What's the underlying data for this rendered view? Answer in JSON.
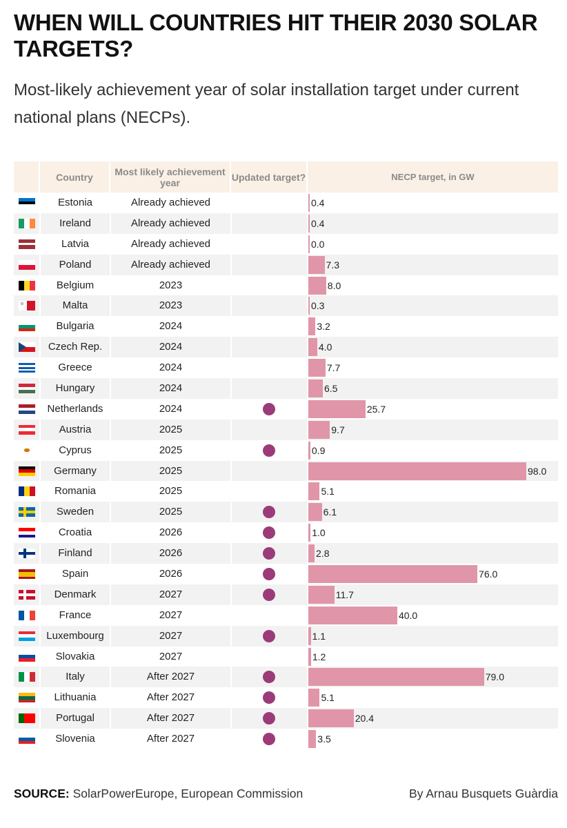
{
  "header": {
    "title": "WHEN WILL COUNTRIES HIT THEIR 2030 SOLAR TARGETS?",
    "subtitle": "Most-likely achievement year of solar installation target under current national plans (NECPs)."
  },
  "columns": {
    "country": "Country",
    "year": "Most likely achievement year",
    "updated": "Updated target?",
    "value": "NECP target, in GW"
  },
  "colors": {
    "bar": "#e096a8",
    "dot": "#9b3b79",
    "header_bg": "#faf0e6",
    "row_alt": "#f2f2f2"
  },
  "footer": {
    "source_label": "SOURCE:",
    "source_text": "SolarPowerEurope, European Commission",
    "credit": "By Arnau Busquets Guàrdia"
  },
  "chart_data": {
    "type": "bar",
    "orientation": "horizontal",
    "title": "WHEN WILL COUNTRIES HIT THEIR 2030 SOLAR TARGETS?",
    "xlabel": "NECP target, in GW",
    "xlim": [
      0,
      98
    ],
    "rows": [
      {
        "country": "Estonia",
        "year": "Already achieved",
        "updated": false,
        "value": 0.4,
        "label": "0.4",
        "flag": [
          [
            "#0072ce",
            "#000000",
            "#ffffff"
          ],
          "h"
        ]
      },
      {
        "country": "Ireland",
        "year": "Already achieved",
        "updated": false,
        "value": 0.4,
        "label": "0.4",
        "flag": [
          [
            "#169b62",
            "#ffffff",
            "#ff883e"
          ],
          "v"
        ]
      },
      {
        "country": "Latvia",
        "year": "Already achieved",
        "updated": false,
        "value": 0.0,
        "label": "0.0",
        "flag": [
          [
            "#9e3039",
            "#9e3039",
            "#ffffff",
            "#9e3039",
            "#9e3039"
          ],
          "h"
        ]
      },
      {
        "country": "Poland",
        "year": "Already achieved",
        "updated": false,
        "value": 7.3,
        "label": "7.3",
        "flag": [
          [
            "#ffffff",
            "#dc143c"
          ],
          "h"
        ]
      },
      {
        "country": "Belgium",
        "year": "2023",
        "updated": false,
        "value": 8.0,
        "label": "8.0",
        "flag": [
          [
            "#000000",
            "#fdda24",
            "#ef3340"
          ],
          "v"
        ]
      },
      {
        "country": "Malta",
        "year": "2023",
        "updated": false,
        "value": 0.3,
        "label": "0.3",
        "flag": [
          [
            "#ffffff",
            "#cf142b"
          ],
          "v"
        ]
      },
      {
        "country": "Bulgaria",
        "year": "2024",
        "updated": false,
        "value": 3.2,
        "label": "3.2",
        "flag": [
          [
            "#ffffff",
            "#00966e",
            "#d62612"
          ],
          "h"
        ]
      },
      {
        "country": "Czech Rep.",
        "year": "2024",
        "updated": false,
        "value": 4.0,
        "label": "4.0",
        "flag": [
          [
            "#ffffff",
            "#d7141a"
          ],
          "h"
        ],
        "triangle": "#11457e"
      },
      {
        "country": "Greece",
        "year": "2024",
        "updated": false,
        "value": 7.7,
        "label": "7.7",
        "flag": [
          [
            "#0d5eaf",
            "#ffffff",
            "#0d5eaf",
            "#ffffff",
            "#0d5eaf"
          ],
          "h"
        ]
      },
      {
        "country": "Hungary",
        "year": "2024",
        "updated": false,
        "value": 6.5,
        "label": "6.5",
        "flag": [
          [
            "#ce2939",
            "#ffffff",
            "#477050"
          ],
          "h"
        ]
      },
      {
        "country": "Netherlands",
        "year": "2024",
        "updated": true,
        "value": 25.7,
        "label": "25.7",
        "flag": [
          [
            "#ae1c28",
            "#ffffff",
            "#21468b"
          ],
          "h"
        ]
      },
      {
        "country": "Austria",
        "year": "2025",
        "updated": false,
        "value": 9.7,
        "label": "9.7",
        "flag": [
          [
            "#ed2939",
            "#ffffff",
            "#ed2939"
          ],
          "h"
        ]
      },
      {
        "country": "Cyprus",
        "year": "2025",
        "updated": true,
        "value": 0.9,
        "label": "0.9",
        "flag": [
          [
            "#ffffff"
          ],
          "h"
        ],
        "emblem": "#d57800"
      },
      {
        "country": "Germany",
        "year": "2025",
        "updated": false,
        "value": 98.0,
        "label": "98.0",
        "flag": [
          [
            "#000000",
            "#dd0000",
            "#ffce00"
          ],
          "h"
        ]
      },
      {
        "country": "Romania",
        "year": "2025",
        "updated": false,
        "value": 5.1,
        "label": "5.1",
        "flag": [
          [
            "#002b7f",
            "#fcd116",
            "#ce1126"
          ],
          "v"
        ]
      },
      {
        "country": "Sweden",
        "year": "2025",
        "updated": true,
        "value": 6.1,
        "label": "6.1",
        "flag": [
          [
            "#006aa7"
          ],
          "h"
        ],
        "cross": "#fecc00"
      },
      {
        "country": "Croatia",
        "year": "2026",
        "updated": true,
        "value": 1.0,
        "label": "1.0",
        "flag": [
          [
            "#ff0000",
            "#ffffff",
            "#171796"
          ],
          "h"
        ]
      },
      {
        "country": "Finland",
        "year": "2026",
        "updated": true,
        "value": 2.8,
        "label": "2.8",
        "flag": [
          [
            "#ffffff"
          ],
          "h"
        ],
        "cross": "#003580"
      },
      {
        "country": "Spain",
        "year": "2026",
        "updated": true,
        "value": 76.0,
        "label": "76.0",
        "flag": [
          [
            "#aa151b",
            "#f1bf00",
            "#f1bf00",
            "#aa151b"
          ],
          "h"
        ]
      },
      {
        "country": "Denmark",
        "year": "2027",
        "updated": true,
        "value": 11.7,
        "label": "11.7",
        "flag": [
          [
            "#c8102e"
          ],
          "h"
        ],
        "cross": "#ffffff"
      },
      {
        "country": "France",
        "year": "2027",
        "updated": false,
        "value": 40.0,
        "label": "40.0",
        "flag": [
          [
            "#0055a4",
            "#ffffff",
            "#ef4135"
          ],
          "v"
        ]
      },
      {
        "country": "Luxembourg",
        "year": "2027",
        "updated": true,
        "value": 1.1,
        "label": "1.1",
        "flag": [
          [
            "#ed2939",
            "#ffffff",
            "#00a1de"
          ],
          "h"
        ]
      },
      {
        "country": "Slovakia",
        "year": "2027",
        "updated": false,
        "value": 1.2,
        "label": "1.2",
        "flag": [
          [
            "#ffffff",
            "#0b4ea2",
            "#ee1c25"
          ],
          "h"
        ]
      },
      {
        "country": "Italy",
        "year": "After 2027",
        "updated": true,
        "value": 79.0,
        "label": "79.0",
        "flag": [
          [
            "#009246",
            "#ffffff",
            "#ce2b37"
          ],
          "v"
        ]
      },
      {
        "country": "Lithuania",
        "year": "After 2027",
        "updated": true,
        "value": 5.1,
        "label": "5.1",
        "flag": [
          [
            "#fdb913",
            "#006a44",
            "#c1272d"
          ],
          "h"
        ]
      },
      {
        "country": "Portugal",
        "year": "After 2027",
        "updated": true,
        "value": 20.4,
        "label": "20.4",
        "flag": [
          [
            "#006600",
            "#ff0000",
            "#ff0000"
          ],
          "v"
        ]
      },
      {
        "country": "Slovenia",
        "year": "After 2027",
        "updated": true,
        "value": 3.5,
        "label": "3.5",
        "flag": [
          [
            "#ffffff",
            "#005da4",
            "#ed1c24"
          ],
          "h"
        ]
      }
    ]
  }
}
